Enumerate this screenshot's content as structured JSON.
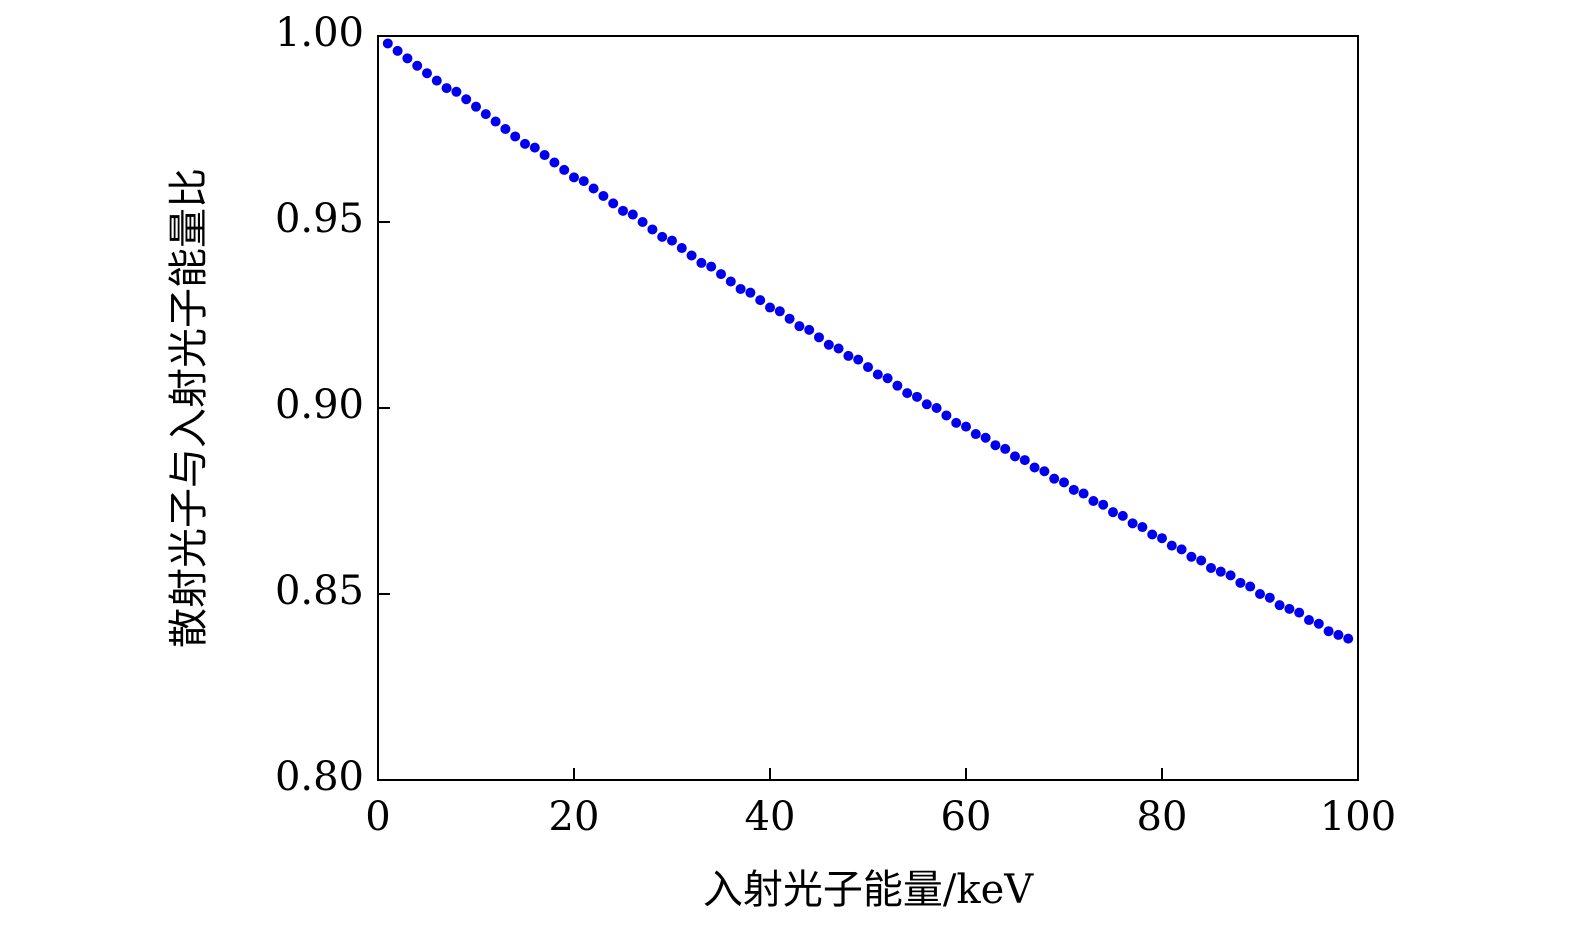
{
  "chart_data": {
    "type": "scatter",
    "x_label": "入射光子能量/keV",
    "y_label": "散射光子与入射光子能量比",
    "series": [
      {
        "color": "#0000ee",
        "x": [
          1,
          2,
          3,
          4,
          5,
          6,
          7,
          8,
          9,
          10,
          11,
          12,
          13,
          14,
          15,
          16,
          17,
          18,
          19,
          20,
          21,
          22,
          23,
          24,
          25,
          26,
          27,
          28,
          29,
          30,
          31,
          32,
          33,
          34,
          35,
          36,
          37,
          38,
          39,
          40,
          41,
          42,
          43,
          44,
          45,
          46,
          47,
          48,
          49,
          50,
          51,
          52,
          53,
          54,
          55,
          56,
          57,
          58,
          59,
          60,
          61,
          62,
          63,
          64,
          65,
          66,
          67,
          68,
          69,
          70,
          71,
          72,
          73,
          74,
          75,
          76,
          77,
          78,
          79,
          80,
          81,
          82,
          83,
          84,
          85,
          86,
          87,
          88,
          89,
          90,
          91,
          92,
          93,
          94,
          95,
          96,
          97,
          98,
          99
        ],
        "values": [
          0.998,
          0.996,
          0.994,
          0.992,
          0.99,
          0.988,
          0.986,
          0.985,
          0.983,
          0.981,
          0.979,
          0.977,
          0.975,
          0.973,
          0.971,
          0.97,
          0.968,
          0.966,
          0.964,
          0.962,
          0.961,
          0.959,
          0.957,
          0.955,
          0.953,
          0.952,
          0.95,
          0.948,
          0.946,
          0.945,
          0.943,
          0.941,
          0.939,
          0.938,
          0.936,
          0.934,
          0.932,
          0.931,
          0.929,
          0.927,
          0.926,
          0.924,
          0.922,
          0.921,
          0.919,
          0.917,
          0.916,
          0.914,
          0.913,
          0.911,
          0.909,
          0.908,
          0.906,
          0.904,
          0.903,
          0.901,
          0.9,
          0.898,
          0.896,
          0.895,
          0.893,
          0.892,
          0.89,
          0.889,
          0.887,
          0.886,
          0.884,
          0.883,
          0.881,
          0.88,
          0.878,
          0.877,
          0.875,
          0.874,
          0.872,
          0.871,
          0.869,
          0.868,
          0.866,
          0.865,
          0.863,
          0.862,
          0.86,
          0.859,
          0.857,
          0.856,
          0.855,
          0.853,
          0.852,
          0.85,
          0.849,
          0.847,
          0.846,
          0.845,
          0.843,
          0.842,
          0.84,
          0.839,
          0.838
        ]
      }
    ],
    "xlim": [
      0,
      100
    ],
    "xticks": [
      0,
      20,
      40,
      60,
      80,
      100
    ],
    "ylim": [
      0.8,
      1.0
    ],
    "yticks": [
      {
        "value": 0.8,
        "label": "0.80"
      },
      {
        "value": 0.85,
        "label": "0.85"
      },
      {
        "value": 0.9,
        "label": "0.90"
      },
      {
        "value": 0.95,
        "label": "0.95"
      },
      {
        "value": 1.0,
        "label": "1.00"
      }
    ]
  }
}
